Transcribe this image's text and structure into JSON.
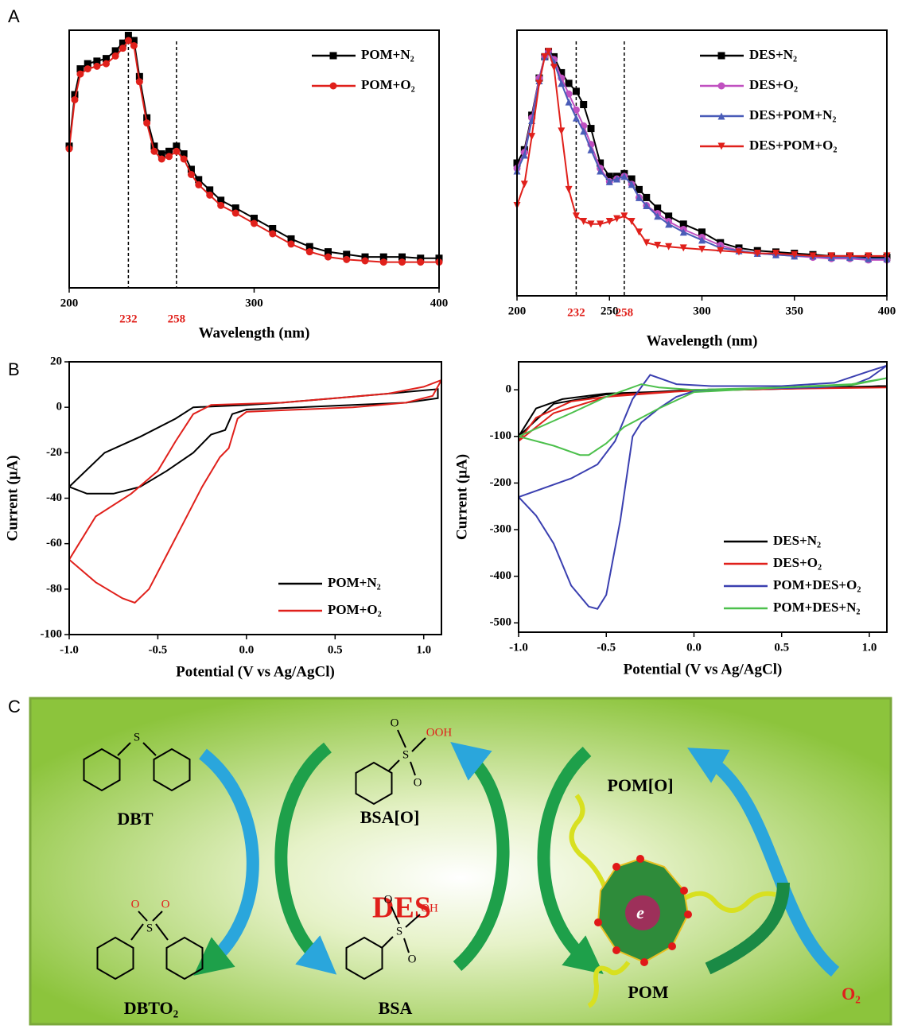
{
  "panels": [
    "A",
    "B",
    "C"
  ],
  "chart_data": [
    {
      "type": "line",
      "xlabel": "Wavelength (nm)",
      "xlim": [
        200,
        400
      ],
      "xticks": [
        200,
        300,
        400
      ],
      "ylim": [
        0,
        1
      ],
      "reference_lines": [
        232,
        258
      ],
      "reference_color": "#e0201b",
      "legend": "upper right",
      "x": [
        200,
        203,
        206,
        210,
        215,
        220,
        225,
        229,
        232,
        235,
        238,
        242,
        246,
        250,
        254,
        258,
        262,
        266,
        270,
        276,
        282,
        290,
        300,
        310,
        320,
        330,
        340,
        350,
        360,
        370,
        380,
        390,
        400
      ],
      "series": [
        {
          "name": "POM+N₂",
          "color": "#000000",
          "marker": "square",
          "values": [
            0.55,
            0.75,
            0.85,
            0.87,
            0.88,
            0.89,
            0.92,
            0.95,
            0.98,
            0.96,
            0.82,
            0.66,
            0.55,
            0.52,
            0.53,
            0.55,
            0.52,
            0.46,
            0.42,
            0.38,
            0.34,
            0.31,
            0.27,
            0.23,
            0.19,
            0.16,
            0.14,
            0.13,
            0.12,
            0.12,
            0.12,
            0.115,
            0.115
          ]
        },
        {
          "name": "POM+O₂",
          "color": "#e0201b",
          "marker": "circle",
          "values": [
            0.54,
            0.73,
            0.83,
            0.85,
            0.86,
            0.87,
            0.9,
            0.93,
            0.96,
            0.94,
            0.8,
            0.64,
            0.53,
            0.5,
            0.51,
            0.53,
            0.5,
            0.44,
            0.4,
            0.36,
            0.32,
            0.29,
            0.25,
            0.21,
            0.17,
            0.14,
            0.12,
            0.11,
            0.105,
            0.1,
            0.1,
            0.1,
            0.1
          ]
        }
      ]
    },
    {
      "type": "line",
      "xlabel": "Wavelength (nm)",
      "xlim": [
        200,
        400
      ],
      "xticks": [
        200,
        250,
        300,
        350,
        400
      ],
      "ylim": [
        0,
        1
      ],
      "reference_lines": [
        232,
        258
      ],
      "reference_color": "#e0201b",
      "legend": "upper right",
      "x": [
        200,
        204,
        208,
        212,
        215,
        217,
        220,
        224,
        228,
        232,
        236,
        240,
        245,
        250,
        254,
        258,
        262,
        266,
        270,
        276,
        282,
        290,
        300,
        310,
        320,
        330,
        340,
        350,
        360,
        370,
        380,
        390,
        400
      ],
      "series": [
        {
          "name": "DES+N₂",
          "color": "#000000",
          "marker": "square",
          "values": [
            0.5,
            0.55,
            0.68,
            0.82,
            0.9,
            0.92,
            0.9,
            0.84,
            0.8,
            0.77,
            0.72,
            0.63,
            0.5,
            0.45,
            0.45,
            0.46,
            0.44,
            0.4,
            0.37,
            0.33,
            0.3,
            0.27,
            0.24,
            0.2,
            0.18,
            0.17,
            0.165,
            0.16,
            0.155,
            0.15,
            0.15,
            0.145,
            0.145
          ]
        },
        {
          "name": "DES+O₂",
          "color": "#c050c0",
          "marker": "circle",
          "values": [
            0.48,
            0.54,
            0.67,
            0.82,
            0.9,
            0.92,
            0.89,
            0.82,
            0.76,
            0.7,
            0.64,
            0.57,
            0.48,
            0.43,
            0.44,
            0.45,
            0.42,
            0.37,
            0.34,
            0.31,
            0.28,
            0.25,
            0.22,
            0.19,
            0.17,
            0.16,
            0.155,
            0.15,
            0.145,
            0.14,
            0.14,
            0.135,
            0.135
          ]
        },
        {
          "name": "DES+POM+N₂",
          "color": "#4a5cb8",
          "marker": "triangle",
          "values": [
            0.47,
            0.53,
            0.66,
            0.81,
            0.9,
            0.92,
            0.88,
            0.8,
            0.73,
            0.67,
            0.62,
            0.55,
            0.47,
            0.43,
            0.44,
            0.45,
            0.42,
            0.37,
            0.34,
            0.3,
            0.27,
            0.24,
            0.21,
            0.18,
            0.17,
            0.16,
            0.155,
            0.15,
            0.15,
            0.145,
            0.145,
            0.14,
            0.14
          ]
        },
        {
          "name": "DES+POM+O₂",
          "color": "#e0201b",
          "marker": "triangle-down",
          "values": [
            0.34,
            0.42,
            0.6,
            0.8,
            0.9,
            0.92,
            0.86,
            0.62,
            0.4,
            0.3,
            0.28,
            0.27,
            0.27,
            0.28,
            0.29,
            0.3,
            0.28,
            0.24,
            0.2,
            0.19,
            0.185,
            0.18,
            0.175,
            0.17,
            0.165,
            0.16,
            0.16,
            0.155,
            0.15,
            0.15,
            0.15,
            0.15,
            0.15
          ]
        }
      ]
    },
    {
      "type": "line",
      "xlabel": "Potential (V vs Ag/AgCl)",
      "ylabel": "Current (μA)",
      "xlim": [
        -1.0,
        1.1
      ],
      "ylim": [
        -100,
        20
      ],
      "xticks": [
        {
          "value": -1.0,
          "label": "-1.0"
        },
        {
          "value": -0.5,
          "label": "-0.5"
        },
        {
          "value": 0,
          "label": "0.0"
        },
        {
          "value": 0.5,
          "label": "0.5"
        },
        {
          "value": 1.0,
          "label": "1.0"
        }
      ],
      "yticks": [
        -100,
        -80,
        -60,
        -40,
        -20,
        0,
        20
      ],
      "legend": "lower right",
      "series": [
        {
          "name": "POM+N₂",
          "color": "#000000",
          "x": [
            -1.0,
            -0.9,
            -0.75,
            -0.6,
            -0.45,
            -0.3,
            -0.2,
            -0.12,
            -0.08,
            0,
            0.3,
            0.6,
            0.9,
            1.08,
            1.08,
            0.8,
            0.5,
            0.2,
            0,
            -0.3,
            -0.4,
            -0.6,
            -0.8,
            -1.0
          ],
          "values": [
            -35,
            -38,
            -38,
            -35,
            -28,
            -20,
            -12,
            -10,
            -3,
            -1,
            0,
            1,
            2,
            4,
            8,
            6,
            4,
            2,
            1,
            0,
            -5,
            -13,
            -20,
            -35
          ]
        },
        {
          "name": "POM+O₂",
          "color": "#e0201b",
          "x": [
            -1.0,
            -0.85,
            -0.7,
            -0.63,
            -0.55,
            -0.45,
            -0.35,
            -0.25,
            -0.15,
            -0.1,
            -0.05,
            0,
            0.3,
            0.6,
            0.9,
            1.05,
            1.1,
            1.0,
            0.8,
            0.5,
            0.2,
            -0.2,
            -0.3,
            -0.4,
            -0.5,
            -0.65,
            -0.85,
            -1.0
          ],
          "values": [
            -67,
            -77,
            -84,
            -86,
            -80,
            -65,
            -50,
            -35,
            -22,
            -18,
            -5,
            -2,
            -1,
            0,
            2,
            5,
            12,
            9,
            6,
            4,
            2,
            1,
            -3,
            -15,
            -28,
            -38,
            -48,
            -67
          ]
        }
      ]
    },
    {
      "type": "line",
      "xlabel": "Potential (V vs Ag/AgCl)",
      "ylabel": "Current (μA)",
      "xlim": [
        -1.0,
        1.1
      ],
      "ylim": [
        -520,
        60
      ],
      "xticks": [
        {
          "value": -1.0,
          "label": "-1.0"
        },
        {
          "value": -0.5,
          "label": "-0.5"
        },
        {
          "value": 0,
          "label": "0.0"
        },
        {
          "value": 0.5,
          "label": "0.5"
        },
        {
          "value": 1.0,
          "label": "1.0"
        }
      ],
      "yticks": [
        -500,
        -400,
        -300,
        -200,
        -100,
        0
      ],
      "legend": "lower right",
      "series": [
        {
          "name": "DES+N₂",
          "color": "#000000",
          "x": [
            -1,
            -0.9,
            -0.75,
            -0.5,
            0,
            0.5,
            1.1,
            0.5,
            0,
            -0.5,
            -0.8,
            -1
          ],
          "values": [
            -100,
            -40,
            -20,
            -8,
            -2,
            2,
            8,
            3,
            0,
            -10,
            -30,
            -100
          ]
        },
        {
          "name": "DES+O₂",
          "color": "#e0201b",
          "x": [
            -1,
            -0.9,
            -0.7,
            -0.4,
            0,
            0.5,
            1.1,
            0.5,
            0,
            -0.5,
            -0.8,
            -1
          ],
          "values": [
            -110,
            -60,
            -25,
            -10,
            -2,
            2,
            5,
            2,
            -1,
            -15,
            -50,
            -110
          ]
        },
        {
          "name": "POM+DES+O₂",
          "color": "#3a3fb0",
          "x": [
            -1,
            -0.9,
            -0.8,
            -0.7,
            -0.6,
            -0.55,
            -0.5,
            -0.42,
            -0.35,
            -0.3,
            -0.2,
            -0.1,
            0,
            0.3,
            0.7,
            0.9,
            1.0,
            1.1,
            1.0,
            0.8,
            0.5,
            0.1,
            -0.1,
            -0.25,
            -0.35,
            -0.45,
            -0.55,
            -0.7,
            -0.85,
            -1
          ],
          "values": [
            -230,
            -270,
            -330,
            -420,
            -465,
            -470,
            -440,
            -280,
            -100,
            -70,
            -40,
            -15,
            -3,
            2,
            5,
            10,
            25,
            52,
            40,
            15,
            8,
            8,
            12,
            32,
            -20,
            -110,
            -160,
            -190,
            -210,
            -230
          ]
        },
        {
          "name": "POM+DES+N₂",
          "color": "#4cc04c",
          "x": [
            -1,
            -0.8,
            -0.65,
            -0.6,
            -0.5,
            -0.4,
            -0.2,
            0,
            0.5,
            0.9,
            1.1,
            0.9,
            0.5,
            0,
            -0.2,
            -0.3,
            -0.5,
            -0.7,
            -1
          ],
          "values": [
            -100,
            -120,
            -140,
            -140,
            -115,
            -80,
            -40,
            -5,
            5,
            10,
            25,
            12,
            5,
            0,
            5,
            12,
            -15,
            -50,
            -100
          ]
        }
      ]
    }
  ],
  "diagram": {
    "center": "DES",
    "electron": "e",
    "compounds": [
      {
        "label": "DBT",
        "atoms": [
          "S"
        ]
      },
      {
        "label": "DBTO₂",
        "atoms": [
          "S",
          "O",
          "O"
        ]
      },
      {
        "label": "BSA[O]",
        "atoms": [
          "S",
          "O",
          "O",
          "OOH"
        ]
      },
      {
        "label": "BSA",
        "atoms": [
          "S",
          "O",
          "O",
          "OH"
        ]
      },
      {
        "label": "POM[O]"
      },
      {
        "label": "POM"
      },
      {
        "label": "O₂"
      }
    ]
  }
}
